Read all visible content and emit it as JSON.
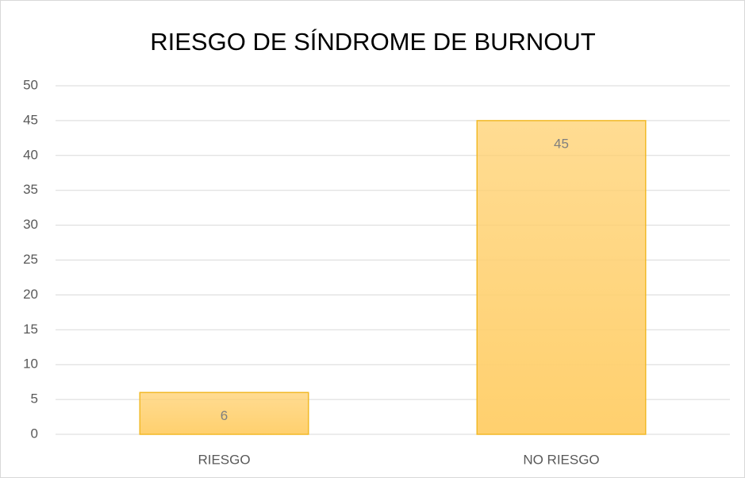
{
  "chart_data": {
    "type": "bar",
    "title": "RIESGO DE SÍNDROME DE BURNOUT",
    "categories": [
      "RIESGO",
      "NO RIESGO"
    ],
    "values": [
      6,
      45
    ],
    "color": "#ffd06e",
    "ylim": [
      0,
      50
    ],
    "yticks": [
      0,
      5,
      10,
      15,
      20,
      25,
      30,
      35,
      40,
      45,
      50
    ],
    "grid": true
  }
}
